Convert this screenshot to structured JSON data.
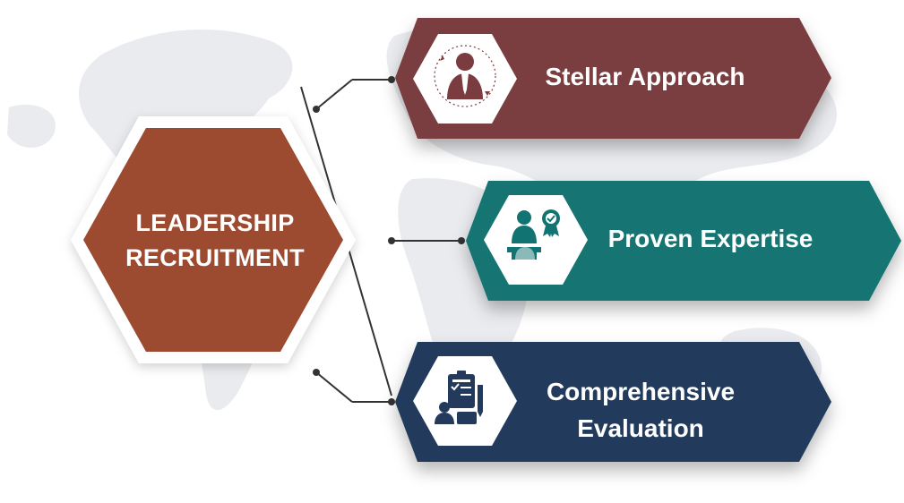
{
  "center": {
    "line1": "LEADERSHIP",
    "line2": "RECRUITMENT",
    "color": "#9c4a30"
  },
  "items": [
    {
      "title": "Stellar Approach",
      "color": "#7a3c3f",
      "icon": "businessman-icon"
    },
    {
      "title": "Proven Expertise",
      "color": "#127472",
      "icon": "certified-expert-icon"
    },
    {
      "line1": "Comprehensive",
      "line2": "Evaluation",
      "color": "#243a5c",
      "icon": "evaluation-clipboard-icon"
    }
  ]
}
